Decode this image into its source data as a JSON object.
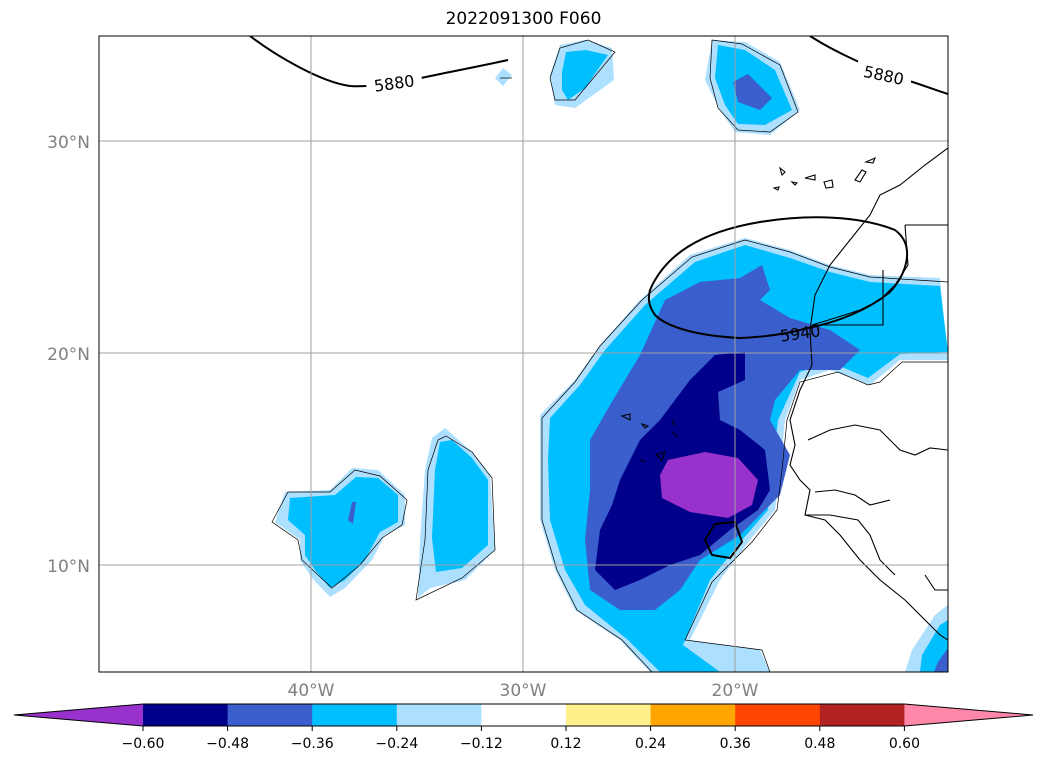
{
  "title": "2022091300 F060",
  "map": {
    "lat_labels": [
      "30°N",
      "20°N",
      "10°N"
    ],
    "lon_labels": [
      "40°W",
      "30°W",
      "20°W"
    ],
    "contour_labels": [
      "5880",
      "5880",
      "5940"
    ]
  },
  "colorbar": {
    "extend": "both",
    "tick_labels": [
      "−0.60",
      "−0.48",
      "−0.36",
      "−0.24",
      "−0.12",
      "0.12",
      "0.24",
      "0.36",
      "0.48",
      "0.60"
    ],
    "colors": [
      "#9932cc",
      "#00008b",
      "#3a5fcd",
      "#00bfff",
      "#addfff",
      "#ffffff",
      "#fff08c",
      "#ffa500",
      "#ff4500",
      "#b22222",
      "#ff88aa"
    ]
  }
}
